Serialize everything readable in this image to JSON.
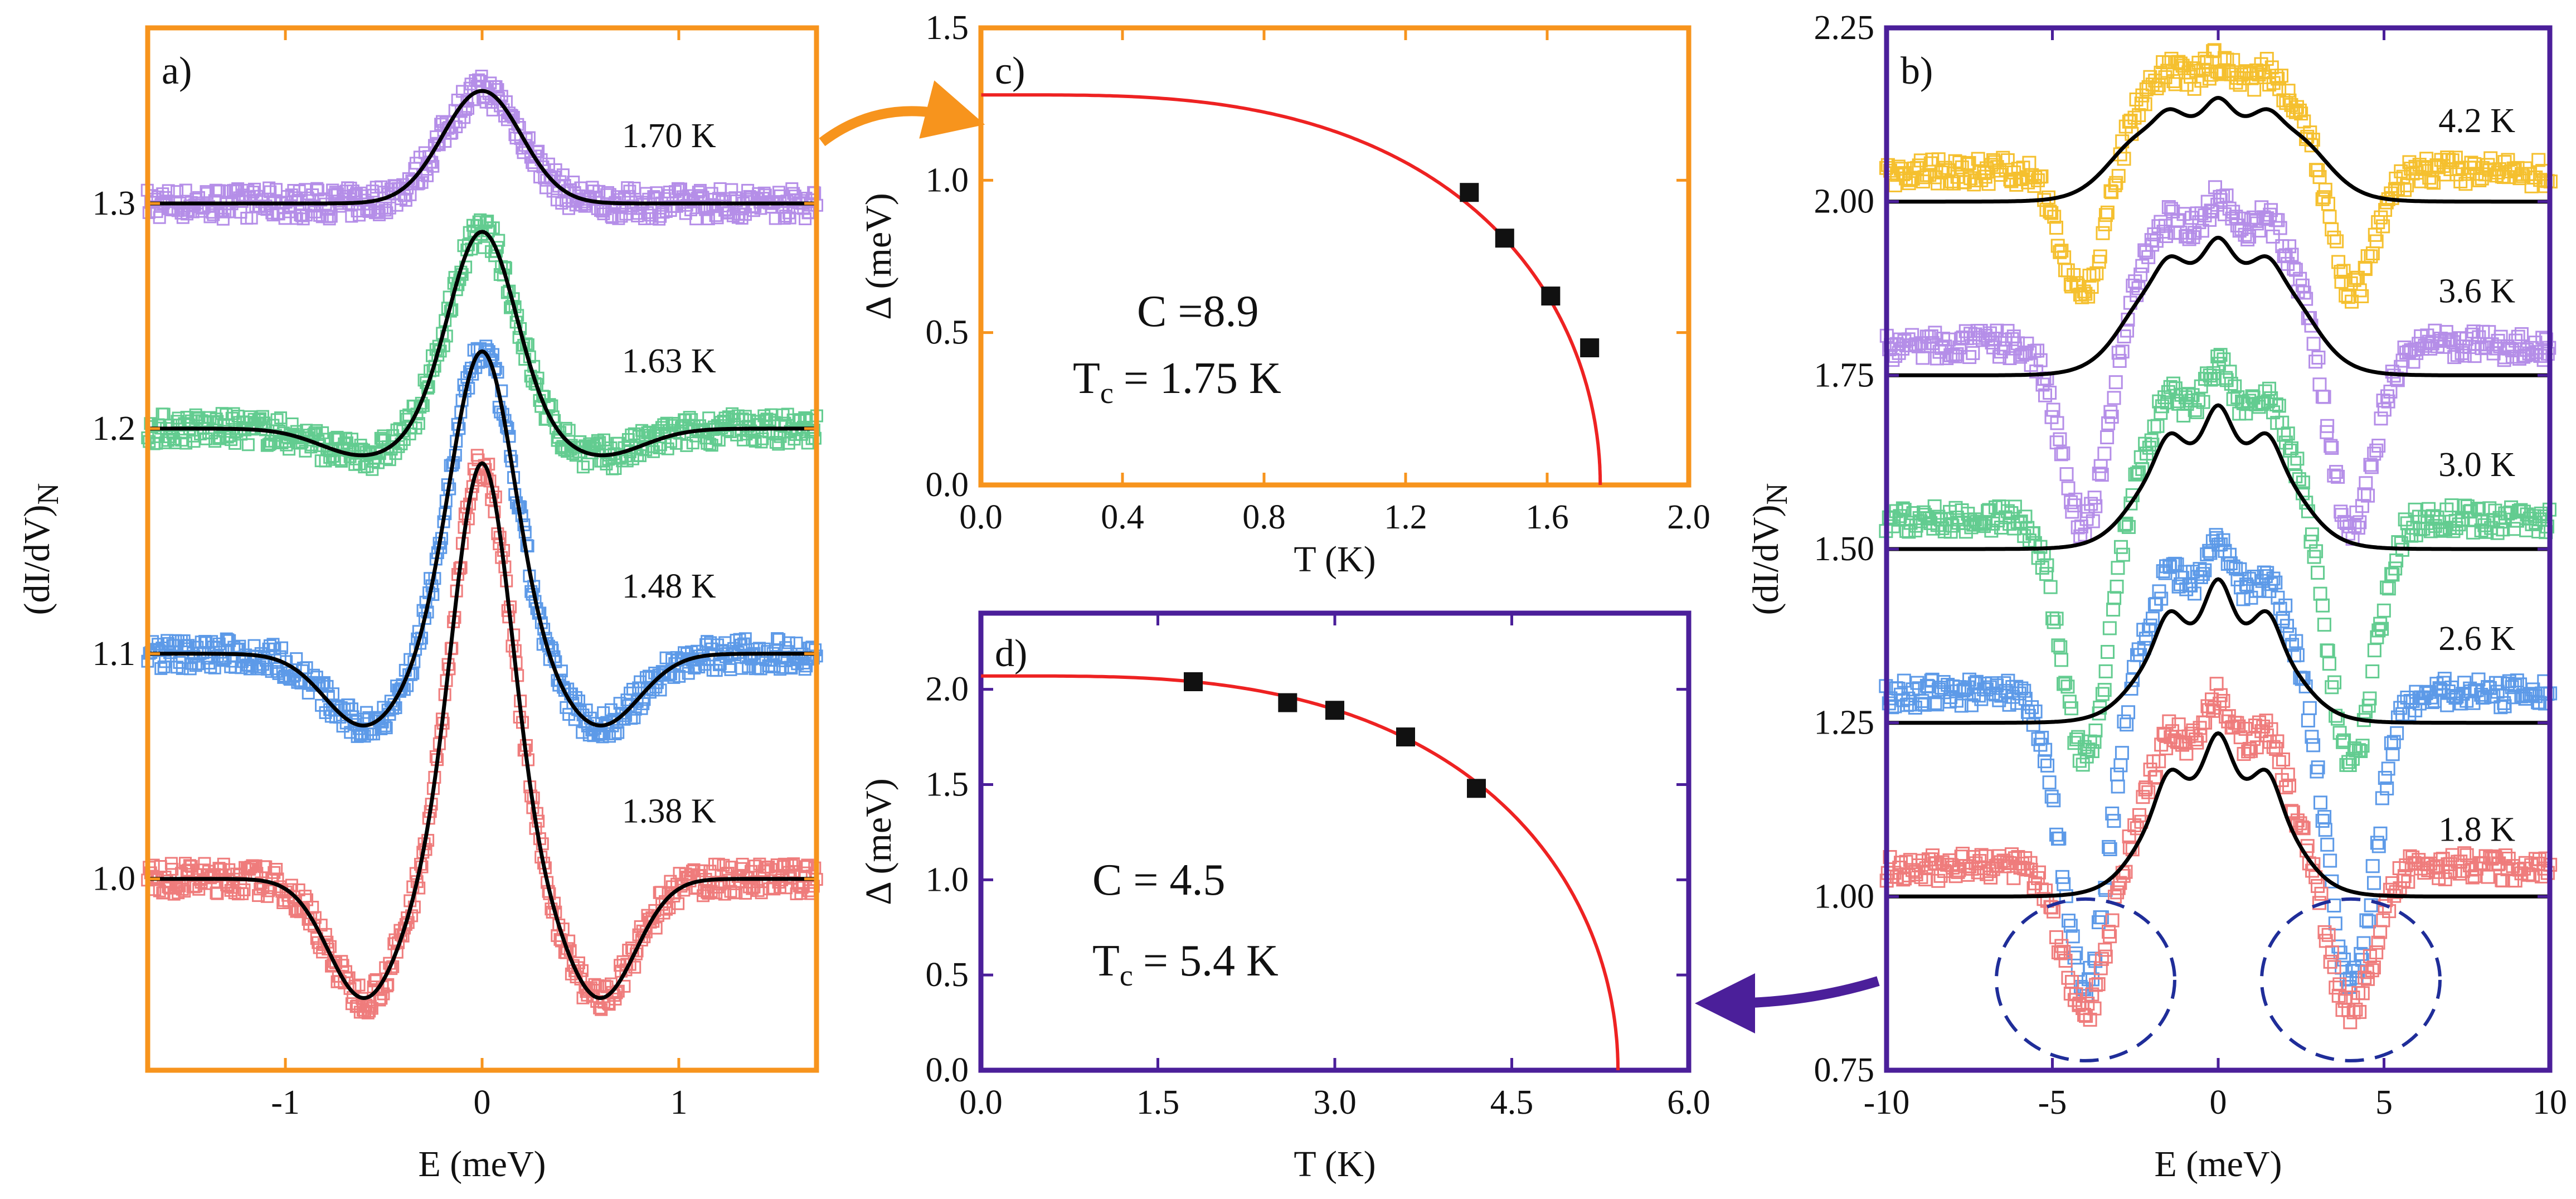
{
  "colors": {
    "orange": "#f7941d",
    "purple": "#4b1f9a",
    "fit": "#000000",
    "gap": "#ee2222",
    "violet": "#b58ee8",
    "green": "#63cc90",
    "blue": "#5d9ae8",
    "pink": "#ef7c7c",
    "yellow": "#f5c02f",
    "circle": "#1f2d99"
  },
  "chart_data": [
    {
      "id": "a",
      "panel_label": "a)",
      "type": "line",
      "xlabel": "E (meV)",
      "ylabel_main": "(dI/dV)",
      "ylabel_sub": "N",
      "xlim": [
        -1.7,
        1.7
      ],
      "ylim": [
        0.915,
        1.378
      ],
      "xticks": [
        {
          "v": -1,
          "label": "-1"
        },
        {
          "v": 0,
          "label": "0"
        },
        {
          "v": 1,
          "label": "1"
        }
      ],
      "yticks": [
        {
          "v": 1.0,
          "label": "1.0"
        },
        {
          "v": 1.1,
          "label": "1.1"
        },
        {
          "v": 1.2,
          "label": "1.2"
        },
        {
          "v": 1.3,
          "label": "1.3"
        }
      ],
      "series": [
        {
          "name": "1.70 K",
          "label": "1.70 K",
          "color_key": "violet",
          "offset": 1.3,
          "peak": 0.05,
          "peak_w": 0.2,
          "dip": 0.0,
          "dip_e": 0.6,
          "dip_w": 0.22,
          "label_v": 1.325
        },
        {
          "name": "1.63 K",
          "label": "1.63 K",
          "color_key": "green",
          "offset": 1.2,
          "peak": 0.088,
          "peak_w": 0.17,
          "dip": 0.012,
          "dip_e": 0.6,
          "dip_w": 0.22,
          "label_v": 1.225
        },
        {
          "name": "1.48 K",
          "label": "1.48 K",
          "color_key": "blue",
          "offset": 1.1,
          "peak": 0.135,
          "peak_w": 0.16,
          "dip": 0.032,
          "dip_e": 0.6,
          "dip_w": 0.2,
          "label_v": 1.125
        },
        {
          "name": "1.38 K",
          "label": "1.38 K",
          "color_key": "pink",
          "offset": 1.0,
          "peak": 0.185,
          "peak_w": 0.15,
          "dip": 0.053,
          "dip_e": 0.6,
          "dip_w": 0.18,
          "label_v": 1.025
        }
      ]
    },
    {
      "id": "c",
      "panel_label": "c)",
      "type": "scatter",
      "xlabel": "T (K)",
      "ylabel": "Δ (meV)",
      "xlim": [
        0,
        2.0
      ],
      "ylim": [
        0,
        1.5
      ],
      "xticks": [
        {
          "v": 0.0,
          "label": "0.0"
        },
        {
          "v": 0.4,
          "label": "0.4"
        },
        {
          "v": 0.8,
          "label": "0.8"
        },
        {
          "v": 1.2,
          "label": "1.2"
        },
        {
          "v": 1.6,
          "label": "1.6"
        },
        {
          "v": 2.0,
          "label": "2.0"
        }
      ],
      "yticks": [
        {
          "v": 0.0,
          "label": "0.0"
        },
        {
          "v": 0.5,
          "label": "0.5"
        },
        {
          "v": 1.0,
          "label": "1.0"
        },
        {
          "v": 1.5,
          "label": "1.5"
        }
      ],
      "points": [
        {
          "T": 1.38,
          "gap": 0.96
        },
        {
          "T": 1.48,
          "gap": 0.81
        },
        {
          "T": 1.61,
          "gap": 0.62
        },
        {
          "T": 1.72,
          "gap": 0.45
        }
      ],
      "fit": {
        "delta0": 1.28,
        "Tc": 1.75,
        "C": 8.9
      },
      "annotation_c": "C =8.9",
      "annotation_tc_main": "T",
      "annotation_tc_sub": "c",
      "annotation_tc_value": "= 1.75 K"
    },
    {
      "id": "d",
      "panel_label": "d)",
      "type": "scatter",
      "xlabel": "T (K)",
      "ylabel": "Δ (meV)",
      "xlim": [
        0,
        6.0
      ],
      "ylim": [
        0,
        2.4
      ],
      "xticks": [
        {
          "v": 0.0,
          "label": "0.0"
        },
        {
          "v": 1.5,
          "label": "1.5"
        },
        {
          "v": 3.0,
          "label": "3.0"
        },
        {
          "v": 4.5,
          "label": "4.5"
        },
        {
          "v": 6.0,
          "label": "6.0"
        }
      ],
      "yticks": [
        {
          "v": 0.0,
          "label": "0.0"
        },
        {
          "v": 0.5,
          "label": "0.5"
        },
        {
          "v": 1.0,
          "label": "1.0"
        },
        {
          "v": 1.5,
          "label": "1.5"
        },
        {
          "v": 2.0,
          "label": "2.0"
        }
      ],
      "points": [
        {
          "T": 1.8,
          "gap": 2.04
        },
        {
          "T": 2.6,
          "gap": 1.93
        },
        {
          "T": 3.0,
          "gap": 1.89
        },
        {
          "T": 3.6,
          "gap": 1.75
        },
        {
          "T": 4.2,
          "gap": 1.48
        }
      ],
      "fit": {
        "delta0": 2.07,
        "Tc": 5.4,
        "C": 4.5
      },
      "annotation_c": "C = 4.5",
      "annotation_tc_main": "T",
      "annotation_tc_sub": "c",
      "annotation_tc_value": "= 5.4 K"
    },
    {
      "id": "b",
      "panel_label": "b)",
      "type": "line",
      "xlabel": "E (meV)",
      "ylabel_main": "(dI/dV)",
      "ylabel_sub": "N",
      "xlim": [
        -10,
        10
      ],
      "ylim": [
        0.75,
        2.25
      ],
      "xticks": [
        {
          "v": -10,
          "label": "-10"
        },
        {
          "v": -5,
          "label": "-5"
        },
        {
          "v": 0,
          "label": "0"
        },
        {
          "v": 5,
          "label": "5"
        },
        {
          "v": 10,
          "label": "10"
        }
      ],
      "yticks": [
        {
          "v": 0.75,
          "label": "0.75"
        },
        {
          "v": 1.0,
          "label": "1.00"
        },
        {
          "v": 1.25,
          "label": "1.25"
        },
        {
          "v": 1.5,
          "label": "1.50"
        },
        {
          "v": 1.75,
          "label": "1.75"
        },
        {
          "v": 2.0,
          "label": "2.00"
        },
        {
          "v": 2.25,
          "label": "2.25"
        }
      ],
      "series": [
        {
          "name": "4.2 K",
          "label": "4.2 K",
          "color_key": "yellow",
          "offset": 2.0,
          "bump": 0.12,
          "bump_w": 3.2,
          "inner": 0.03,
          "dip": 0.2,
          "dip_e": 4.0,
          "label_v": 2.1
        },
        {
          "name": "3.6 K",
          "label": "3.6 K",
          "color_key": "violet",
          "offset": 1.75,
          "bump": 0.16,
          "bump_w": 2.8,
          "inner": 0.04,
          "dip": 0.28,
          "dip_e": 4.0,
          "label_v": 1.855
        },
        {
          "name": "3.0 K",
          "label": "3.0 K",
          "color_key": "green",
          "offset": 1.5,
          "bump": 0.15,
          "bump_w": 2.5,
          "inner": 0.06,
          "dip": 0.36,
          "dip_e": 4.0,
          "label_v": 1.605
        },
        {
          "name": "2.6 K",
          "label": "2.6 K",
          "color_key": "blue",
          "offset": 1.25,
          "bump": 0.14,
          "bump_w": 2.4,
          "inner": 0.07,
          "dip": 0.43,
          "dip_e": 4.0,
          "label_v": 1.355
        },
        {
          "name": "1.8 K",
          "label": "1.8 K",
          "color_key": "pink",
          "offset": 1.0,
          "bump": 0.17,
          "bump_w": 2.3,
          "inner": 0.07,
          "dip": 0.22,
          "dip_e": 4.0,
          "label_v": 1.08
        }
      ],
      "circles": [
        {
          "E": -4.0,
          "v": 0.88
        },
        {
          "E": 4.0,
          "v": 0.88
        }
      ]
    }
  ]
}
